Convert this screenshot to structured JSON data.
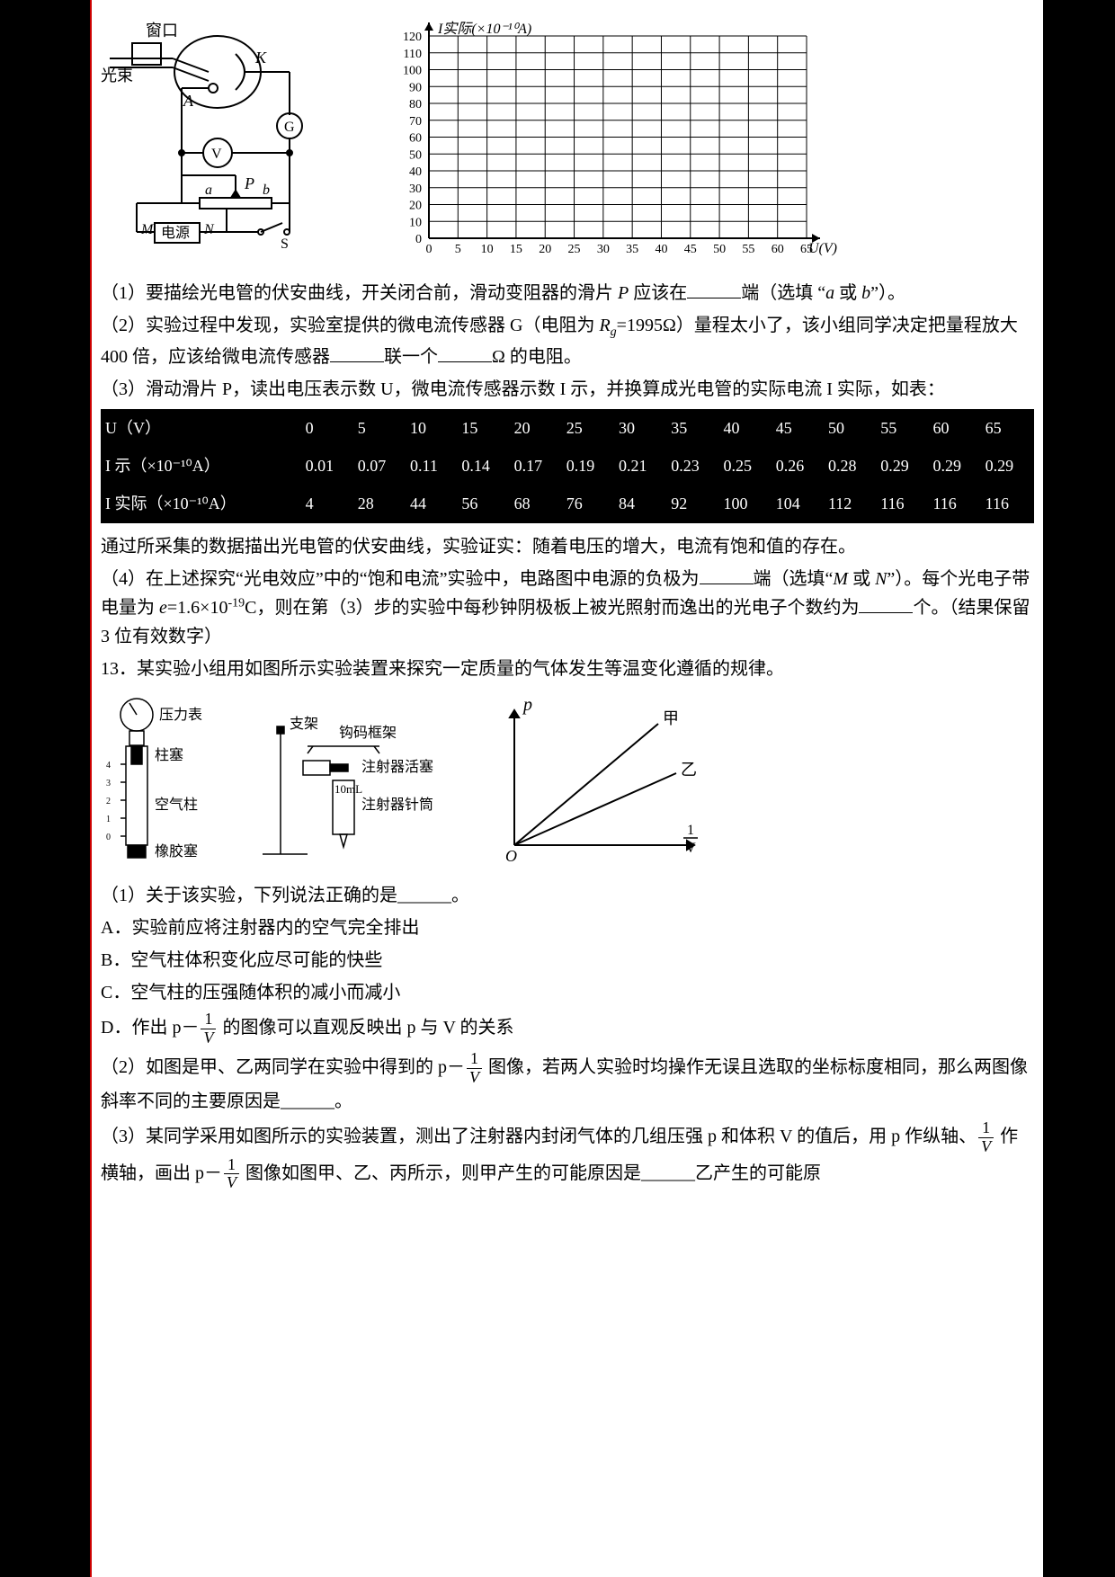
{
  "circuit": {
    "labels": {
      "window": "窗口",
      "beam": "光束",
      "K": "K",
      "A": "A",
      "G": "G",
      "V": "V",
      "a": "a",
      "b": "b",
      "P": "P",
      "M": "M",
      "N": "N",
      "source": "电源",
      "S": "S"
    },
    "stroke": "#000000",
    "fill_bg": "#ffffff"
  },
  "graph": {
    "y_label": "I实际(×10⁻¹⁰A)",
    "x_label": "U(V)",
    "x_min": 0,
    "x_max": 65,
    "x_step": 5,
    "y_min": 0,
    "y_max": 120,
    "y_step": 10,
    "grid_color": "#000000",
    "axis_color": "#000000",
    "label_fontsize": 16
  },
  "q1": "（1）要描绘光电管的伏安曲线，开关闭合前，滑动变阻器的滑片 P 应该在______端（选填 \"a 或 b\"）。",
  "q2": "（2）实验过程中发现，实验室提供的微电流传感器 G（电阻为 Rg=1995Ω）量程太小了，该小组同学决定把量程放大 400 倍，应该给微电流传感器______联一个______Ω 的电阻。",
  "q3_intro": "（3）滑动滑片 P，读出电压表示数 U，微电流传感器示数 I 示，并换算成光电管的实际电流 I 实际，如表：",
  "table": {
    "headers": [
      "U（V）",
      "0",
      "5",
      "10",
      "15",
      "20",
      "25",
      "30",
      "35",
      "40",
      "45",
      "50",
      "55",
      "60",
      "65"
    ],
    "row1_label": "I 示（×10⁻¹⁰A）",
    "row1": [
      "0.01",
      "0.07",
      "0.11",
      "0.14",
      "0.17",
      "0.19",
      "0.21",
      "0.23",
      "0.25",
      "0.26",
      "0.28",
      "0.29",
      "0.29",
      "0.29"
    ],
    "row2_label": "I 实际（×10⁻¹⁰A）",
    "row2": [
      "4",
      "28",
      "44",
      "56",
      "68",
      "76",
      "84",
      "92",
      "100",
      "104",
      "112",
      "116",
      "116",
      "116"
    ]
  },
  "after_table": "通过所采集的数据描出光电管的伏安曲线，实验证实：随着电压的增大，电流有饱和值的存在。",
  "q4a": "（4）在上述探究\"光电效应\"中的\"饱和电流\"实验中，电路图中电源的负极为______端（选填\"M 或 N\"）。每个光电子带电量为 e=1.6×10⁻¹⁹C，则在第（3）步的实验中每秒钟阴极板上被光照射而逸出的光电子个数约为______个。（结果保留 3 位有效数字）",
  "q13_title": "13．某实验小组用如图所示实验装置来探究一定质量的气体发生等温变化遵循的规律。",
  "apparatus": {
    "labels": {
      "gauge": "压力表",
      "plunger": "柱塞",
      "aircol": "空气柱",
      "stopper": "橡胶塞",
      "stand": "支架",
      "frame": "钩码框架",
      "piston": "注射器活塞",
      "barrel": "注射器针筒",
      "vol": "10mL"
    }
  },
  "pv_graph": {
    "y_label": "p",
    "x_label_frac_num": "1",
    "x_label_frac_den": "V",
    "line_jia": "甲",
    "line_yi": "乙",
    "origin": "O"
  },
  "q13_1": "（1）关于该实验，下列说法正确的是______。",
  "q13_A": "A．实验前应将注射器内的空气完全排出",
  "q13_B": "B．空气柱体积变化应尽可能的快些",
  "q13_C": "C．空气柱的压强随体积的减小而减小",
  "q13_D_pre": "D．作出 p－",
  "q13_D_post": " 的图像可以直观反映出 p 与 V 的关系",
  "q13_2_pre": "（2）如图是甲、乙两同学在实验中得到的 p－",
  "q13_2_post": " 图像，若两人实验时均操作无误且选取的坐标标度相同，那么两图像斜率不同的主要原因是______。",
  "q13_3_pre": "（3）某同学采用如图所示的实验装置，测出了注射器内封闭气体的几组压强 p 和体积 V 的值后，用 p 作纵轴、",
  "q13_3_mid": " 作横轴，画出 p－",
  "q13_3_post": " 图像如图甲、乙、丙所示，则甲产生的可能原因是______乙产生的可能原",
  "colors": {
    "text": "#000000",
    "bg": "#ffffff",
    "border": "#000000",
    "red_margin": "#cc0000"
  }
}
